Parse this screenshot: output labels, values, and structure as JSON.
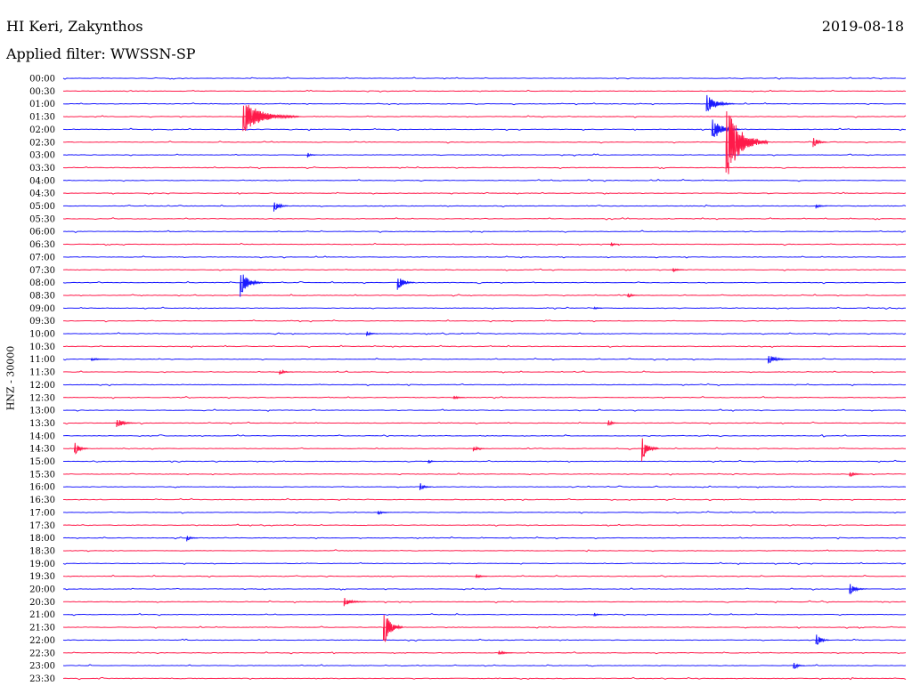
{
  "header": {
    "title": "HI Keri, Zakynthos",
    "date": "2019-08-18",
    "filter": "Applied filter: WWSSN-SP"
  },
  "colors": {
    "blue": "#1a1aff",
    "red": "#ff1a4a"
  },
  "chart_data": {
    "type": "line",
    "ylabel": "HNZ - 30000",
    "row_labels": [
      "00:00",
      "00:30",
      "01:00",
      "01:30",
      "02:00",
      "02:30",
      "03:00",
      "03:30",
      "04:00",
      "04:30",
      "05:00",
      "05:30",
      "06:00",
      "06:30",
      "07:00",
      "07:30",
      "08:00",
      "08:30",
      "09:00",
      "09:30",
      "10:00",
      "10:30",
      "11:00",
      "11:30",
      "12:00",
      "12:30",
      "13:00",
      "13:30",
      "14:00",
      "14:30",
      "15:00",
      "15:30",
      "16:00",
      "16:30",
      "17:00",
      "17:30",
      "18:00",
      "18:30",
      "19:00",
      "19:30",
      "20:00",
      "20:30",
      "21:00",
      "21:30",
      "22:00",
      "22:30",
      "23:00",
      "23:30"
    ],
    "row_colors": [
      "blue",
      "red"
    ],
    "x_range_minutes": [
      0,
      30
    ],
    "events": [
      {
        "row": "01:00",
        "minute": 22.9,
        "amp": 11,
        "dur": 1.0
      },
      {
        "row": "01:30",
        "minute": 6.4,
        "amp": 20,
        "dur": 2.0
      },
      {
        "row": "02:00",
        "minute": 23.1,
        "amp": 14,
        "dur": 1.0
      },
      {
        "row": "02:30",
        "minute": 23.6,
        "amp": 45,
        "dur": 1.5
      },
      {
        "row": "02:30",
        "minute": 26.7,
        "amp": 7,
        "dur": 0.5
      },
      {
        "row": "03:00",
        "minute": 8.7,
        "amp": 3,
        "dur": 0.3
      },
      {
        "row": "05:00",
        "minute": 7.5,
        "amp": 8,
        "dur": 0.5
      },
      {
        "row": "05:00",
        "minute": 26.8,
        "amp": 3,
        "dur": 0.4
      },
      {
        "row": "06:30",
        "minute": 19.5,
        "amp": 3,
        "dur": 0.3
      },
      {
        "row": "07:30",
        "minute": 21.7,
        "amp": 3,
        "dur": 0.4
      },
      {
        "row": "08:00",
        "minute": 6.3,
        "amp": 16,
        "dur": 0.8
      },
      {
        "row": "08:00",
        "minute": 11.9,
        "amp": 10,
        "dur": 0.6
      },
      {
        "row": "08:30",
        "minute": 20.1,
        "amp": 3,
        "dur": 0.4
      },
      {
        "row": "09:00",
        "minute": 18.9,
        "amp": 2,
        "dur": 0.3
      },
      {
        "row": "10:00",
        "minute": 10.8,
        "amp": 3,
        "dur": 0.4
      },
      {
        "row": "11:00",
        "minute": 1.0,
        "amp": 2,
        "dur": 0.6
      },
      {
        "row": "11:00",
        "minute": 25.1,
        "amp": 6,
        "dur": 0.8
      },
      {
        "row": "11:30",
        "minute": 7.7,
        "amp": 3,
        "dur": 0.5
      },
      {
        "row": "12:30",
        "minute": 13.9,
        "amp": 3,
        "dur": 0.4
      },
      {
        "row": "13:30",
        "minute": 1.9,
        "amp": 6,
        "dur": 0.7
      },
      {
        "row": "13:30",
        "minute": 19.4,
        "amp": 4,
        "dur": 0.4
      },
      {
        "row": "14:30",
        "minute": 0.4,
        "amp": 8,
        "dur": 0.5
      },
      {
        "row": "14:30",
        "minute": 14.6,
        "amp": 4,
        "dur": 0.4
      },
      {
        "row": "14:30",
        "minute": 20.6,
        "amp": 16,
        "dur": 0.6
      },
      {
        "row": "15:00",
        "minute": 13.0,
        "amp": 3,
        "dur": 0.3
      },
      {
        "row": "15:30",
        "minute": 28.0,
        "amp": 4,
        "dur": 0.5
      },
      {
        "row": "16:00",
        "minute": 12.7,
        "amp": 5,
        "dur": 0.4
      },
      {
        "row": "17:00",
        "minute": 11.2,
        "amp": 3,
        "dur": 0.4
      },
      {
        "row": "18:00",
        "minute": 4.4,
        "amp": 4,
        "dur": 0.4
      },
      {
        "row": "19:30",
        "minute": 14.7,
        "amp": 3,
        "dur": 0.4
      },
      {
        "row": "20:00",
        "minute": 28.0,
        "amp": 7,
        "dur": 0.6
      },
      {
        "row": "20:30",
        "minute": 10.0,
        "amp": 5,
        "dur": 0.8
      },
      {
        "row": "21:00",
        "minute": 18.9,
        "amp": 3,
        "dur": 0.3
      },
      {
        "row": "21:30",
        "minute": 11.4,
        "amp": 22,
        "dur": 0.7
      },
      {
        "row": "22:00",
        "minute": 26.8,
        "amp": 8,
        "dur": 0.5
      },
      {
        "row": "22:30",
        "minute": 15.5,
        "amp": 3,
        "dur": 0.5
      },
      {
        "row": "23:00",
        "minute": 26.0,
        "amp": 5,
        "dur": 0.4
      }
    ]
  }
}
